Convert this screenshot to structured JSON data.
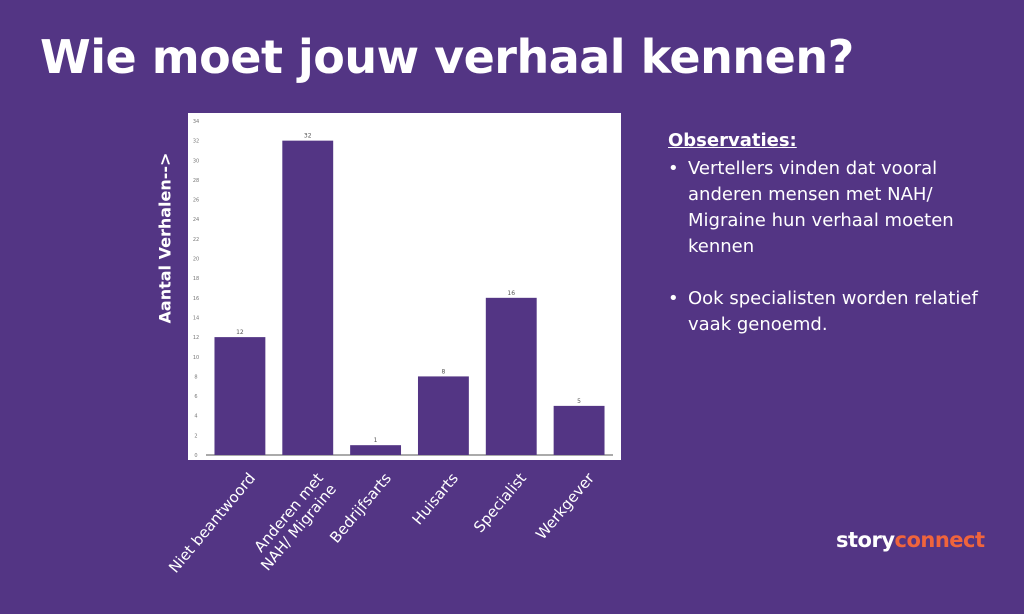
{
  "title": "Wie moet jouw verhaal kennen?",
  "colors": {
    "background": "#533584",
    "bar": "#533584",
    "text": "#ffffff",
    "brand_accent": "#f0643c"
  },
  "chart_data": {
    "type": "bar",
    "ylabel": "Aantal Verhalen-->",
    "ylim": [
      0,
      34
    ],
    "yticks": [
      0,
      2,
      4,
      6,
      8,
      10,
      12,
      14,
      16,
      18,
      20,
      22,
      24,
      26,
      28,
      30,
      32,
      34
    ],
    "grid": false,
    "categories": [
      "Niet beantwoord",
      "Anderen met\nNAH/ Migraine",
      "Bedrijfsarts",
      "Huisarts",
      "Specialist",
      "Werkgever"
    ],
    "values": [
      12,
      32,
      1,
      8,
      16,
      5
    ],
    "data_labels": [
      "12",
      "32",
      "1",
      "8",
      "16",
      "5"
    ]
  },
  "observations": {
    "heading": "Observaties:",
    "items": [
      "Vertellers vinden dat vooral anderen mensen met NAH/ Migraine hun verhaal moeten kennen",
      "Ook specialisten worden relatief vaak genoemd."
    ]
  },
  "brand": {
    "part1": "story",
    "part2": "connect"
  }
}
